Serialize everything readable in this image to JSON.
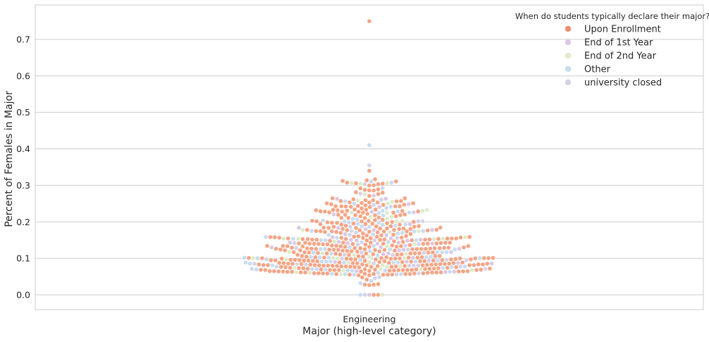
{
  "chart_data": {
    "type": "scatter",
    "subtype": "swarm",
    "categories": [
      "Engineering"
    ],
    "xlabel": "Major (high-level category)",
    "ylabel": "Percent of Females in Major",
    "ylim": [
      -0.04,
      0.79
    ],
    "yticks": [
      "0.0",
      "0.1",
      "0.2",
      "0.3",
      "0.4",
      "0.5",
      "0.6",
      "0.7"
    ],
    "grid": true,
    "legend": {
      "title": "When do students typically declare their major?",
      "placement": "top-right",
      "entries": [
        "Upon Enrollment",
        "End of 1st Year",
        "End of 2nd Year",
        "Other",
        "university closed"
      ]
    },
    "series": [
      {
        "name": "Upon Enrollment",
        "color": "#f4a585",
        "count": 430
      },
      {
        "name": "End of 1st Year",
        "color": "#dcc8e3",
        "count": 40
      },
      {
        "name": "End of 2nd Year",
        "color": "#dfeac9",
        "count": 50
      },
      {
        "name": "Other",
        "color": "#c9dcef",
        "count": 110
      },
      {
        "name": "university closed",
        "color": "#d6d2e6",
        "count": 30
      }
    ],
    "notable_points": [
      {
        "category": "Engineering",
        "y": 0.75,
        "series": "Upon Enrollment"
      },
      {
        "category": "Engineering",
        "y": 0.41,
        "series": "Other"
      },
      {
        "category": "Engineering",
        "y": 0.355,
        "series": "university closed"
      },
      {
        "category": "Engineering",
        "y": 0.34,
        "series": "Upon Enrollment"
      }
    ]
  },
  "colors": {
    "grid": "#cccccc",
    "axis_frame": "#cccccc",
    "text": "#262626",
    "legend_marker_upon_enrollment": "#f28e6e"
  }
}
